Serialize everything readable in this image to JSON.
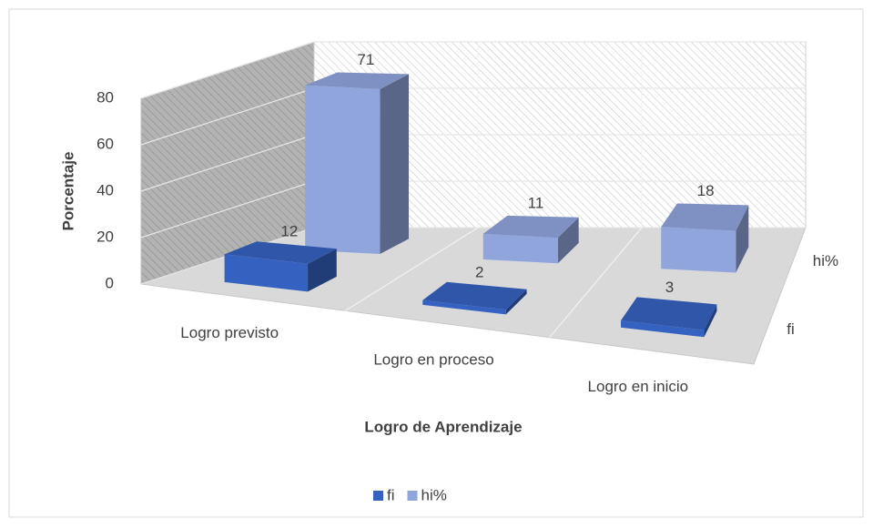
{
  "chart_data": {
    "type": "bar3d",
    "categories": [
      "Logro previsto",
      "Logro en proceso",
      "Logro en inicio"
    ],
    "series": [
      {
        "name": "fi",
        "color": "#3562c0",
        "values": [
          12,
          2,
          3
        ]
      },
      {
        "name": "hi%",
        "color": "#8fa5dc",
        "values": [
          71,
          11,
          18
        ]
      }
    ],
    "ylim": [
      0,
      80
    ],
    "yticks": [
      0,
      20,
      40,
      60,
      80
    ],
    "y_label": "Porcentaje",
    "x_label": "Logro de  Aprendizaje",
    "grid": true,
    "legend": "bottom"
  }
}
